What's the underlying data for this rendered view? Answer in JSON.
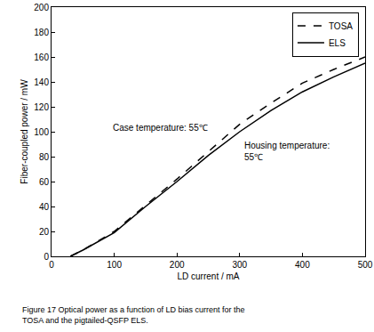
{
  "chart_data": {
    "type": "line",
    "title": "Figure 17 Optical power as a function of LD bias current for the TOSA and the pigtailed-QSFP ELS.",
    "x_label": "LD current / mA",
    "y_label": "Fiber-coupled power / mW",
    "x": [
      30,
      50,
      100,
      150,
      200,
      250,
      300,
      350,
      400,
      450,
      500
    ],
    "series": [
      {
        "name": "TOSA",
        "color": "#000000",
        "line_style": "dashed",
        "values": [
          0,
          5,
          20,
          41,
          62,
          84,
          106,
          123,
          139,
          150,
          160
        ]
      },
      {
        "name": "ELS",
        "color": "#000000",
        "line_style": "solid",
        "values": [
          0,
          5,
          19,
          40,
          60,
          81,
          100,
          117,
          132,
          144,
          155
        ]
      }
    ],
    "xlim": [
      0,
      500
    ],
    "xticks": [
      0,
      100,
      200,
      300,
      400,
      500
    ],
    "ylim": [
      0,
      200
    ],
    "yticks": [
      0,
      20,
      40,
      60,
      80,
      100,
      120,
      140,
      160,
      180,
      200
    ],
    "grid": false,
    "legend": "upper right",
    "annotations": [
      "Case temperature: 55℃",
      "Housing temperature: 55℃"
    ]
  }
}
